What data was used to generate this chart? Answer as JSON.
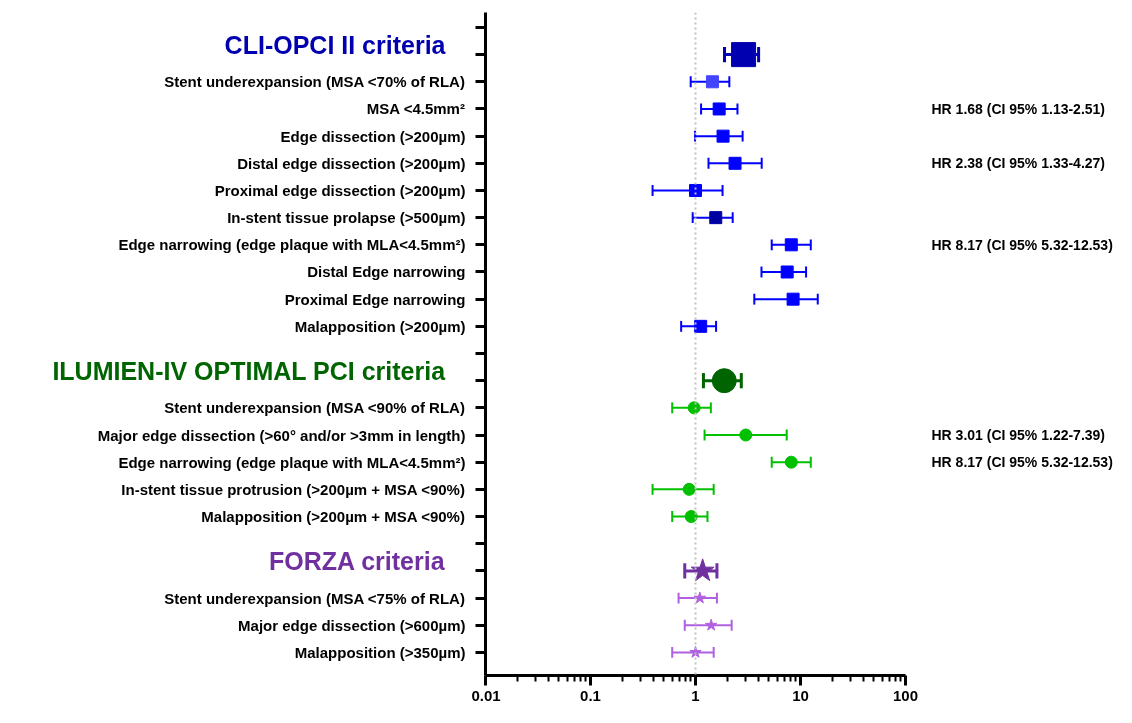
{
  "chart_data": {
    "type": "scatter",
    "categories": [
      null,
      null,
      "Stent underexpansion (MSA <70% of RLA)",
      "MSA <4.5mm²",
      "Edge dissection (>200µm)",
      "Distal edge dissection (>200µm)",
      "Proximal edge dissection (>200µm)",
      "In-stent tissue prolapse (>500µm)",
      "Edge narrowing (edge plaque with MLA<4.5mm²)",
      "Distal Edge narrowing",
      "Proximal Edge narrowing",
      "Malapposition (>200µm)",
      null,
      null,
      "Stent underexpansion (MSA <90% of RLA)",
      "Major edge dissection (>60° and/or >3mm in length)",
      "Edge narrowing (edge plaque with MLA<4.5mm²)",
      "In-stent tissue protrusion (>200µm + MSA <90%)",
      "Malapposition (>200µm + MSA <90%)",
      null,
      null,
      "Stent underexpansion (MSA <75% of RLA)",
      "Major edge dissection (>600µm)",
      "Malapposition (>350µm)"
    ],
    "series": [
      {
        "name": "CLI-OPCI II criteria",
        "color": "#0000b0",
        "marker": "square",
        "values": [
          null,
          2.87,
          null,
          null,
          null,
          null,
          null,
          null,
          null,
          null,
          null,
          null,
          null,
          null,
          null,
          null,
          null,
          null,
          null,
          null,
          null,
          null,
          null,
          null
        ],
        "errors": [
          null,
          [
            1.89,
            3.99
          ],
          null,
          null,
          null,
          null,
          null,
          null,
          null,
          null,
          null,
          null,
          null,
          null,
          null,
          null,
          null,
          null,
          null,
          null,
          null,
          null,
          null,
          null
        ]
      },
      {
        "color": "#0000ff",
        "colors": [
          null,
          null,
          "#4444ff",
          "#0000ff",
          "#0000ff",
          "#0000ff",
          "#0000ff",
          "#0000a0",
          "#0000ff",
          "#0000ff",
          "#0000ff",
          "#0000ff",
          null,
          null,
          null,
          null,
          null,
          null,
          null,
          null,
          null,
          null,
          null,
          null
        ],
        "marker": "square",
        "values": [
          null,
          null,
          1.45,
          1.68,
          1.83,
          2.38,
          1.0,
          1.56,
          8.17,
          7.47,
          8.5,
          1.12,
          null,
          null,
          null,
          null,
          null,
          null,
          null,
          null,
          null,
          null,
          null,
          null
        ],
        "errors": [
          null,
          null,
          [
            0.9,
            2.1
          ],
          [
            1.13,
            2.51
          ],
          [
            0.99,
            2.81
          ],
          [
            1.33,
            4.27
          ],
          [
            0.39,
            1.81
          ],
          [
            0.94,
            2.26
          ],
          [
            5.32,
            12.53
          ],
          [
            4.25,
            11.3
          ],
          [
            3.63,
            14.6
          ],
          [
            0.73,
            1.57
          ],
          null,
          null,
          null,
          null,
          null,
          null,
          null,
          null,
          null,
          null,
          null,
          null
        ]
      },
      {
        "name": "ILUMIEN-IV OPTIMAL PCI criteria",
        "color": "#006400",
        "marker": "circle",
        "values": [
          null,
          null,
          null,
          null,
          null,
          null,
          null,
          null,
          null,
          null,
          null,
          null,
          null,
          1.88,
          null,
          null,
          null,
          null,
          null,
          null,
          null,
          null,
          null,
          null
        ],
        "errors": [
          null,
          null,
          null,
          null,
          null,
          null,
          null,
          null,
          null,
          null,
          null,
          null,
          null,
          [
            1.19,
            2.73
          ],
          null,
          null,
          null,
          null,
          null,
          null,
          null,
          null,
          null,
          null
        ]
      },
      {
        "color": "#00c000",
        "marker": "circle",
        "values": [
          null,
          null,
          null,
          null,
          null,
          null,
          null,
          null,
          null,
          null,
          null,
          null,
          null,
          null,
          0.97,
          3.01,
          8.17,
          0.87,
          0.91,
          null,
          null,
          null,
          null,
          null
        ],
        "errors": [
          null,
          null,
          null,
          null,
          null,
          null,
          null,
          null,
          null,
          null,
          null,
          null,
          null,
          null,
          [
            0.6,
            1.4
          ],
          [
            1.22,
            7.39
          ],
          [
            5.32,
            12.53
          ],
          [
            0.39,
            1.49
          ],
          [
            0.6,
            1.3
          ],
          null,
          null,
          null,
          null,
          null
        ]
      },
      {
        "name": "FORZA criteria",
        "color": "#7030a0",
        "marker": "star",
        "values": [
          null,
          null,
          null,
          null,
          null,
          null,
          null,
          null,
          null,
          null,
          null,
          null,
          null,
          null,
          null,
          null,
          null,
          null,
          null,
          null,
          1.17,
          null,
          null,
          null
        ],
        "errors": [
          null,
          null,
          null,
          null,
          null,
          null,
          null,
          null,
          null,
          null,
          null,
          null,
          null,
          null,
          null,
          null,
          null,
          null,
          null,
          null,
          [
            0.79,
            1.6
          ],
          null,
          null,
          null
        ]
      },
      {
        "color": "#b060e0",
        "marker": "star",
        "values": [
          null,
          null,
          null,
          null,
          null,
          null,
          null,
          null,
          null,
          null,
          null,
          null,
          null,
          null,
          null,
          null,
          null,
          null,
          null,
          null,
          null,
          1.1,
          1.41,
          1.0
        ],
        "errors": [
          null,
          null,
          null,
          null,
          null,
          null,
          null,
          null,
          null,
          null,
          null,
          null,
          null,
          null,
          null,
          null,
          null,
          null,
          null,
          null,
          null,
          [
            0.69,
            1.6
          ],
          [
            0.79,
            2.21
          ],
          [
            0.6,
            1.49
          ]
        ]
      }
    ],
    "orientation": "horizontal",
    "log": "x",
    "xlim": [
      0.01,
      100
    ],
    "xticks": [
      0.01,
      0.1,
      1,
      10,
      100
    ],
    "grid": false,
    "ref_lines": [
      {
        "axis": "x",
        "value": 1,
        "color": "#c0c0c0",
        "line_style": "dotted"
      }
    ],
    "annotations": [
      "HR 1.68 (CI 95% 1.13-2.51)",
      "HR 2.38 (CI 95% 1.33-4.27)",
      "HR 8.17 (CI 95% 5.32-12.53)",
      "HR 3.01 (CI 95% 1.22-7.39)",
      "HR 8.17 (CI 95% 5.32-12.53)"
    ]
  }
}
